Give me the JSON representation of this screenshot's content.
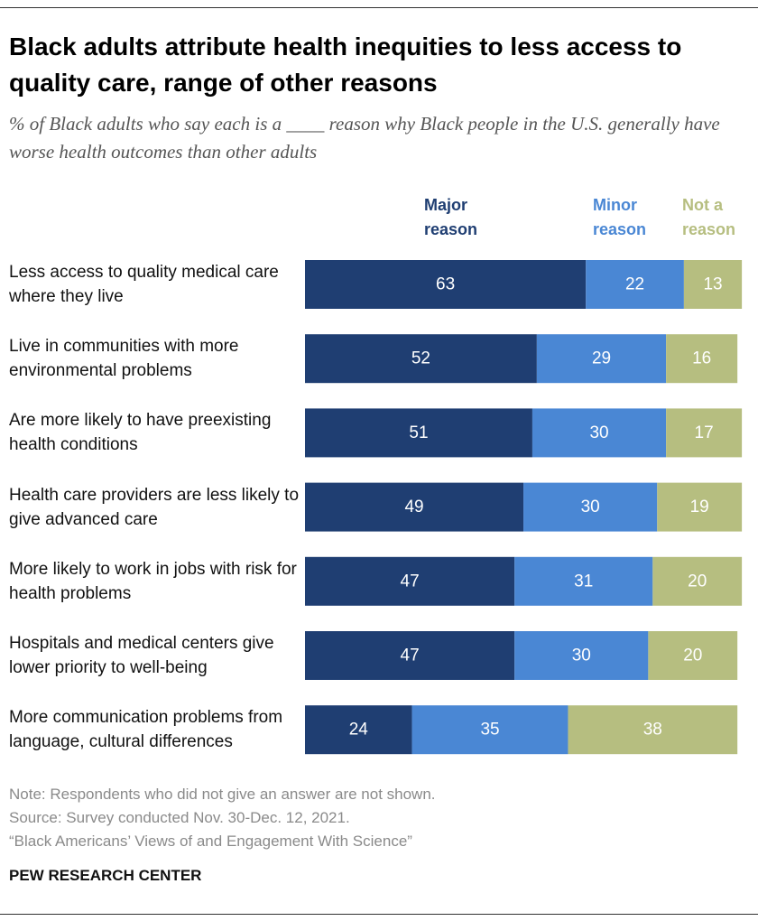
{
  "chart_data": {
    "type": "bar",
    "stacked": true,
    "orientation": "horizontal",
    "title": "Black adults attribute health inequities to less access to quality care, range of other reasons",
    "subtitle": "% of Black adults who say each is a ____ reason why Black people in the U.S. generally have worse health outcomes than other adults",
    "categories": [
      "Less access to quality medical care where they live",
      "Live in communities with more environmental problems",
      "Are more likely to have preexisting health conditions",
      "Health care providers are less likely to give advanced care",
      "More likely to work in jobs with risk for health problems",
      "Hospitals and medical centers give lower priority to well-being",
      "More communication problems from language, cultural differences"
    ],
    "series": [
      {
        "name": "Major reason",
        "color": "#1f3e72",
        "values": [
          63,
          52,
          51,
          49,
          47,
          47,
          24
        ]
      },
      {
        "name": "Minor reason",
        "color": "#4a87d4",
        "values": [
          22,
          29,
          30,
          30,
          31,
          30,
          35
        ]
      },
      {
        "name": "Not a reason",
        "color": "#b6be80",
        "values": [
          13,
          16,
          17,
          19,
          20,
          20,
          38
        ]
      }
    ],
    "note": "Note: Respondents who did not give an answer are not shown.",
    "source": "Source: Survey conducted Nov. 30-Dec. 12, 2021.",
    "publication": "“Black Americans’ Views of and Engagement With Science”",
    "credit": "PEW RESEARCH CENTER"
  }
}
